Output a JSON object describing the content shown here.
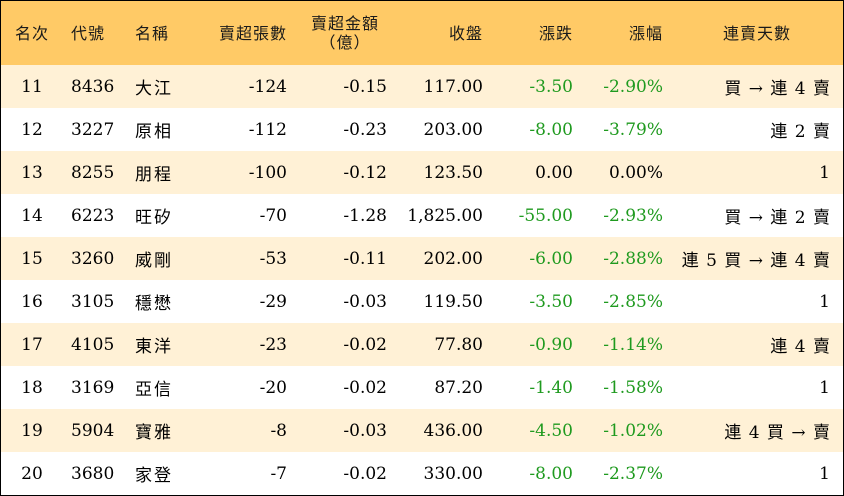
{
  "headers": {
    "rank": "名次",
    "code": "代號",
    "name": "名稱",
    "net_sell_lots": "賣超張數",
    "net_sell_amount_line1": "賣超金額",
    "net_sell_amount_line2": "（億）",
    "close": "收盤",
    "change": "漲跌",
    "change_pct": "漲幅",
    "streak": "連賣天數"
  },
  "rows": [
    {
      "rank": "11",
      "code": "8436",
      "name": "大江",
      "lots": "-124",
      "amount": "-0.15",
      "close": "117.00",
      "change": "-3.50",
      "pct": "-2.90%",
      "streak": "買 → 連 4 賣"
    },
    {
      "rank": "12",
      "code": "3227",
      "name": "原相",
      "lots": "-112",
      "amount": "-0.23",
      "close": "203.00",
      "change": "-8.00",
      "pct": "-3.79%",
      "streak": "連 2 賣"
    },
    {
      "rank": "13",
      "code": "8255",
      "name": "朋程",
      "lots": "-100",
      "amount": "-0.12",
      "close": "123.50",
      "change": "0.00",
      "pct": "0.00%",
      "streak": "1"
    },
    {
      "rank": "14",
      "code": "6223",
      "name": "旺矽",
      "lots": "-70",
      "amount": "-1.28",
      "close": "1,825.00",
      "change": "-55.00",
      "pct": "-2.93%",
      "streak": "買 → 連 2 賣"
    },
    {
      "rank": "15",
      "code": "3260",
      "name": "威剛",
      "lots": "-53",
      "amount": "-0.11",
      "close": "202.00",
      "change": "-6.00",
      "pct": "-2.88%",
      "streak": "連 5 買 → 連 4 賣"
    },
    {
      "rank": "16",
      "code": "3105",
      "name": "穩懋",
      "lots": "-29",
      "amount": "-0.03",
      "close": "119.50",
      "change": "-3.50",
      "pct": "-2.85%",
      "streak": "1"
    },
    {
      "rank": "17",
      "code": "4105",
      "name": "東洋",
      "lots": "-23",
      "amount": "-0.02",
      "close": "77.80",
      "change": "-0.90",
      "pct": "-1.14%",
      "streak": "連 4 賣"
    },
    {
      "rank": "18",
      "code": "3169",
      "name": "亞信",
      "lots": "-20",
      "amount": "-0.02",
      "close": "87.20",
      "change": "-1.40",
      "pct": "-1.58%",
      "streak": "1"
    },
    {
      "rank": "19",
      "code": "5904",
      "name": "寶雅",
      "lots": "-8",
      "amount": "-0.03",
      "close": "436.00",
      "change": "-4.50",
      "pct": "-1.02%",
      "streak": "連 4 買 → 賣"
    },
    {
      "rank": "20",
      "code": "3680",
      "name": "家登",
      "lots": "-7",
      "amount": "-0.02",
      "close": "330.00",
      "change": "-8.00",
      "pct": "-2.37%",
      "streak": "1"
    }
  ],
  "colors": {
    "header_bg": "#ffca66",
    "odd_row_bg": "#fff1d6",
    "change_text": "#1f9a1f"
  }
}
